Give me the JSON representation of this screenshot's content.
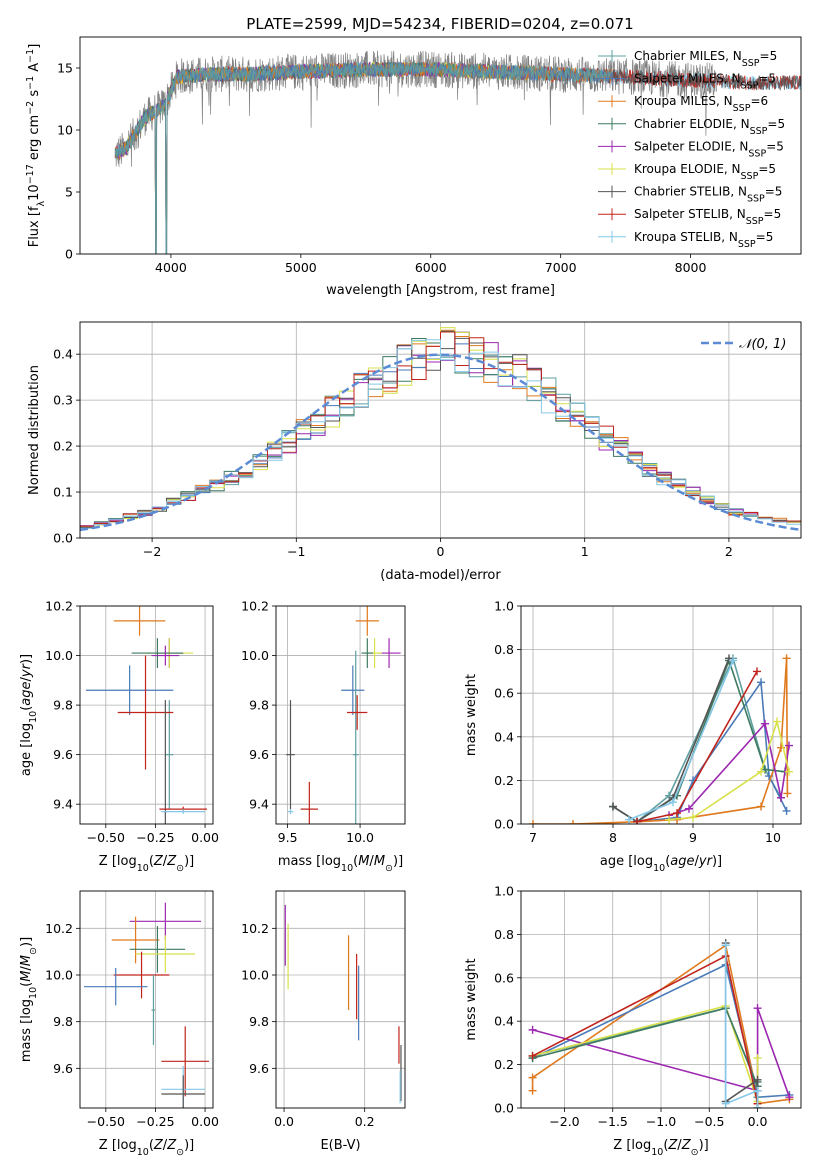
{
  "figure_title": "PLATE=2599, MJD=54234, FIBERID=0204, z=0.071",
  "colors": {
    "Chabrier MILES": "#5f9fa0",
    "Salpeter MILES": "#4a7ab8",
    "Kroupa MILES": "#e07a1f",
    "Chabrier ELODIE": "#3d7a60",
    "Salpeter ELODIE": "#9c27b0",
    "Kroupa ELODIE": "#d8e04a",
    "Chabrier STELIB": "#555555",
    "Salpeter STELIB": "#c0241c",
    "Kroupa STELIB": "#86c8e8",
    "data": "#808080",
    "normal": "#5b8bd4"
  },
  "chart_data": [
    {
      "type": "line",
      "id": "spectrum",
      "xlabel": "wavelength [Angstrom, rest frame]",
      "ylabel": "Flux [f_λ10^-17 erg cm^-2 s^-1 A^-1]",
      "xlim": [
        3300,
        8850
      ],
      "ylim": [
        0,
        17.5
      ],
      "xticks": [
        4000,
        5000,
        6000,
        7000,
        8000
      ],
      "yticks": [
        0,
        5,
        10,
        15
      ],
      "grid": false,
      "legend_position": "right",
      "legend": [
        {
          "label": "Chabrier MILES",
          "n": "5"
        },
        {
          "label": "Salpeter MILES",
          "n": "5"
        },
        {
          "label": "Kroupa MILES",
          "n": "6"
        },
        {
          "label": "Chabrier ELODIE",
          "n": "5"
        },
        {
          "label": "Salpeter ELODIE",
          "n": "5"
        },
        {
          "label": "Kroupa ELODIE",
          "n": "5"
        },
        {
          "label": "Chabrier STELIB",
          "n": "5"
        },
        {
          "label": "Salpeter STELIB",
          "n": "5"
        },
        {
          "label": "Kroupa STELIB",
          "n": "5"
        }
      ],
      "continuum": {
        "x": [
          3570,
          3650,
          3800,
          3950,
          4050,
          4300,
          4600,
          5000,
          5500,
          6000,
          6500,
          7000,
          7500,
          8000,
          8500
        ],
        "y": [
          8.0,
          8.5,
          11.0,
          12.0,
          14.3,
          14.5,
          14.5,
          14.7,
          14.9,
          14.9,
          14.7,
          14.5,
          14.3,
          14.0,
          13.8
        ]
      },
      "data_range": [
        3570,
        8200
      ],
      "miles_range": [
        3570,
        7400
      ],
      "elodie_range": [
        3570,
        6800
      ],
      "stelib_range": [
        3570,
        8850
      ]
    },
    {
      "type": "line",
      "id": "residual-histogram",
      "xlabel": "(data-model)/error",
      "ylabel": "Normed distribution",
      "xlim": [
        -2.5,
        2.5
      ],
      "ylim": [
        0,
        0.47
      ],
      "xticks": [
        -2,
        -1,
        0,
        1,
        2
      ],
      "yticks": [
        0.0,
        0.1,
        0.2,
        0.3,
        0.4
      ],
      "grid": true,
      "legend_label": "𝒩(0, 1)",
      "legend_position": "top-right",
      "gauss_sigma": 1.0,
      "bin_width": 0.1,
      "hist_shape": {
        "x": [
          -2.5,
          -2.0,
          -1.5,
          -1.0,
          -0.5,
          0.0,
          0.5,
          1.0,
          1.5,
          2.0,
          2.5
        ],
        "y": [
          0.02,
          0.06,
          0.12,
          0.22,
          0.33,
          0.42,
          0.37,
          0.25,
          0.14,
          0.06,
          0.03
        ]
      }
    },
    {
      "type": "scatter",
      "id": "age-vs-Z",
      "xlabel": "Z [log10(Z/Z⊙)]",
      "ylabel": "age [log10(age/yr)]",
      "xlim": [
        -0.63,
        0.04
      ],
      "ylim": [
        9.32,
        10.2
      ],
      "xticks": [
        -0.5,
        -0.25,
        0.0
      ],
      "xticklabels": [
        "−0.50",
        "−0.25",
        "0.00"
      ],
      "yticks": [
        9.4,
        9.6,
        9.8,
        10.0,
        10.2
      ],
      "grid": true,
      "points": [
        {
          "model": "Kroupa MILES",
          "x": -0.33,
          "xerr": 0.13,
          "y": 10.14,
          "yerr": 0.06
        },
        {
          "model": "Salpeter MILES",
          "x": -0.38,
          "xerr": 0.22,
          "y": 9.86,
          "yerr": 0.1
        },
        {
          "model": "Chabrier MILES",
          "x": -0.18,
          "xerr": 0.02,
          "y": 9.6,
          "yerr": 0.22
        },
        {
          "model": "Salpeter ELODIE",
          "x": -0.18,
          "xerr": 0.07,
          "y": 10.01,
          "yerr": 0.06
        },
        {
          "model": "Kroupa ELODIE",
          "x": -0.18,
          "xerr": 0.12,
          "y": 10.01,
          "yerr": 0.06
        },
        {
          "model": "Chabrier ELODIE",
          "x": -0.24,
          "xerr": 0.13,
          "y": 10.01,
          "yerr": 0.06
        },
        {
          "model": "Salpeter ELODIE",
          "x": -0.2,
          "xerr": 0.07,
          "y": 10.0,
          "yerr": 0.04
        },
        {
          "model": "Salpeter STELIB",
          "x": -0.3,
          "xerr": 0.14,
          "y": 9.77,
          "yerr": 0.23
        },
        {
          "model": "Chabrier STELIB",
          "x": -0.2,
          "xerr": 0.01,
          "y": 9.37,
          "yerr": 0.45
        },
        {
          "model": "Salpeter STELIB",
          "x": -0.11,
          "xerr": 0.12,
          "y": 9.38,
          "yerr": 0.01
        },
        {
          "model": "Kroupa STELIB",
          "x": -0.11,
          "xerr": 0.11,
          "y": 9.37,
          "yerr": 0.01
        }
      ]
    },
    {
      "type": "scatter",
      "id": "age-vs-mass",
      "xlabel": "mass [log10(M/M⊙)]",
      "ylabel": "",
      "xlim": [
        9.42,
        10.31
      ],
      "ylim": [
        9.32,
        10.2
      ],
      "xticks": [
        9.5,
        10.0
      ],
      "xticklabels": [
        "9.5",
        "10.0"
      ],
      "yticks": [
        9.4,
        9.6,
        9.8,
        10.0,
        10.2
      ],
      "grid": true,
      "points": [
        {
          "model": "Kroupa MILES",
          "x": 10.05,
          "xerr": 0.08,
          "y": 10.14,
          "yerr": 0.06
        },
        {
          "model": "Salpeter MILES",
          "x": 9.95,
          "xerr": 0.08,
          "y": 9.86,
          "yerr": 0.1
        },
        {
          "model": "Chabrier MILES",
          "x": 9.97,
          "xerr": 0.02,
          "y": 9.6,
          "yerr": 0.42
        },
        {
          "model": "Salpeter ELODIE",
          "x": 10.2,
          "xerr": 0.08,
          "y": 10.01,
          "yerr": 0.06
        },
        {
          "model": "Kroupa ELODIE",
          "x": 10.1,
          "xerr": 0.05,
          "y": 10.01,
          "yerr": 0.06
        },
        {
          "model": "Chabrier ELODIE",
          "x": 10.05,
          "xerr": 0.04,
          "y": 10.01,
          "yerr": 0.06
        },
        {
          "model": "Salpeter STELIB",
          "x": 9.98,
          "xerr": 0.07,
          "y": 9.77,
          "yerr": 0.07
        },
        {
          "model": "Chabrier STELIB",
          "x": 9.52,
          "xerr": 0.03,
          "y": 9.6,
          "yerr": 0.22
        },
        {
          "model": "Salpeter STELIB",
          "x": 9.65,
          "xerr": 0.06,
          "y": 9.38,
          "yerr": 0.11
        },
        {
          "model": "Kroupa STELIB",
          "x": 9.52,
          "xerr": 0.02,
          "y": 9.37,
          "yerr": 0.01
        }
      ]
    },
    {
      "type": "line",
      "id": "massweight-vs-age",
      "xlabel": "age [log10(age/yr)]",
      "ylabel": "mass weight",
      "xlim": [
        6.85,
        10.35
      ],
      "ylim": [
        0,
        1.0
      ],
      "xticks": [
        7,
        8,
        9,
        10
      ],
      "yticks": [
        0.0,
        0.2,
        0.4,
        0.6,
        0.8,
        1.0
      ],
      "grid": true,
      "series": [
        {
          "model": "Chabrier MILES",
          "x": [
            8.0,
            8.3,
            8.7,
            9.5,
            9.9,
            10.1
          ],
          "y": [
            0.08,
            0.01,
            0.13,
            0.76,
            0.25,
            0.12
          ]
        },
        {
          "model": "Salpeter MILES",
          "x": [
            8.3,
            8.8,
            9.0,
            9.85,
            9.95,
            10.17
          ],
          "y": [
            0.01,
            0.03,
            0.2,
            0.65,
            0.22,
            0.06
          ]
        },
        {
          "model": "Kroupa MILES",
          "x": [
            7.0,
            7.5,
            8.3,
            8.8,
            9.85,
            10.1,
            10.17,
            10.18
          ],
          "y": [
            0.0,
            0.0,
            0.01,
            0.02,
            0.08,
            0.35,
            0.76,
            0.14
          ]
        },
        {
          "model": "Chabrier ELODIE",
          "x": [
            8.0,
            8.3,
            8.8,
            9.45,
            9.9,
            10.15
          ],
          "y": [
            0.08,
            0.01,
            0.13,
            0.75,
            0.25,
            0.24
          ]
        },
        {
          "model": "Salpeter ELODIE",
          "x": [
            8.7,
            8.95,
            9.9,
            10.1,
            10.2
          ],
          "y": [
            0.04,
            0.07,
            0.46,
            0.12,
            0.36
          ]
        },
        {
          "model": "Kroupa ELODIE",
          "x": [
            8.7,
            9.0,
            9.85,
            10.05,
            10.2
          ],
          "y": [
            0.02,
            0.03,
            0.24,
            0.47,
            0.24
          ]
        },
        {
          "model": "Chabrier STELIB",
          "x": [
            8.0,
            8.3,
            8.75,
            9.45
          ],
          "y": [
            0.08,
            0.01,
            0.12,
            0.76
          ]
        },
        {
          "model": "Salpeter STELIB",
          "x": [
            8.3,
            8.8,
            9.8
          ],
          "y": [
            0.01,
            0.05,
            0.7
          ]
        },
        {
          "model": "Kroupa STELIB",
          "x": [
            8.2,
            8.75,
            9.5
          ],
          "y": [
            0.02,
            0.1,
            0.75
          ]
        }
      ]
    },
    {
      "type": "scatter",
      "id": "mass-vs-Z",
      "xlabel": "Z [log10(Z/Z⊙)]",
      "ylabel": "mass [log10(M/M⊙)]",
      "xlim": [
        -0.63,
        0.04
      ],
      "ylim": [
        9.43,
        10.36
      ],
      "xticks": [
        -0.5,
        -0.25,
        0.0
      ],
      "xticklabels": [
        "−0.50",
        "−0.25",
        "0.00"
      ],
      "yticks": [
        9.6,
        9.8,
        10.0,
        10.2
      ],
      "grid": true,
      "points": [
        {
          "model": "Salpeter ELODIE",
          "x": -0.2,
          "xerr": 0.18,
          "y": 10.23,
          "yerr": 0.08
        },
        {
          "model": "Kroupa MILES",
          "x": -0.35,
          "xerr": 0.12,
          "y": 10.15,
          "yerr": 0.1
        },
        {
          "model": "Chabrier ELODIE",
          "x": -0.24,
          "xerr": 0.14,
          "y": 10.11,
          "yerr": 0.1
        },
        {
          "model": "Kroupa ELODIE",
          "x": -0.2,
          "xerr": 0.15,
          "y": 10.09,
          "yerr": 0.08
        },
        {
          "model": "Salpeter STELIB",
          "x": -0.32,
          "xerr": 0.14,
          "y": 10.0,
          "yerr": 0.1
        },
        {
          "model": "Salpeter MILES",
          "x": -0.45,
          "xerr": 0.16,
          "y": 9.95,
          "yerr": 0.08
        },
        {
          "model": "Chabrier MILES",
          "x": -0.26,
          "xerr": 0.01,
          "y": 9.85,
          "yerr": 0.15
        },
        {
          "model": "Salpeter STELIB",
          "x": -0.1,
          "xerr": 0.12,
          "y": 9.63,
          "yerr": 0.15
        },
        {
          "model": "Kroupa STELIB",
          "x": -0.11,
          "xerr": 0.11,
          "y": 9.51,
          "yerr": 0.1
        },
        {
          "model": "Chabrier STELIB",
          "x": -0.11,
          "xerr": 0.11,
          "y": 9.49,
          "yerr": 0.08
        }
      ]
    },
    {
      "type": "scatter",
      "id": "mass-vs-ebv",
      "xlabel": "E(B-V)",
      "ylabel": "",
      "xlim": [
        -0.02,
        0.3
      ],
      "ylim": [
        9.43,
        10.36
      ],
      "xticks": [
        0.0,
        0.2
      ],
      "xticklabels": [
        "0.0",
        "0.2"
      ],
      "yticks": [
        9.6,
        9.8,
        10.0,
        10.2
      ],
      "grid": true,
      "points": [
        {
          "model": "Salpeter ELODIE",
          "x": 0.003,
          "xerr": 0,
          "y": 10.17,
          "yerr": 0.13
        },
        {
          "model": "Kroupa ELODIE",
          "x": 0.01,
          "xerr": 0,
          "y": 10.08,
          "yerr": 0.14
        },
        {
          "model": "Kroupa MILES",
          "x": 0.16,
          "xerr": 0,
          "y": 10.01,
          "yerr": 0.16
        },
        {
          "model": "Salpeter STELIB",
          "x": 0.18,
          "xerr": 0,
          "y": 9.95,
          "yerr": 0.14
        },
        {
          "model": "Salpeter MILES",
          "x": 0.185,
          "xerr": 0,
          "y": 9.88,
          "yerr": 0.16
        },
        {
          "model": "Salpeter STELIB",
          "x": 0.285,
          "xerr": 0,
          "y": 9.7,
          "yerr": 0.08
        },
        {
          "model": "Chabrier STELIB",
          "x": 0.29,
          "xerr": 0,
          "y": 9.58,
          "yerr": 0.12
        },
        {
          "model": "Kroupa STELIB",
          "x": 0.288,
          "xerr": 0,
          "y": 9.52,
          "yerr": 0.07
        }
      ]
    },
    {
      "type": "line",
      "id": "massweight-vs-Z",
      "xlabel": "Z [log10(Z/Z⊙)]",
      "ylabel": "mass weight",
      "xlim": [
        -2.45,
        0.45
      ],
      "ylim": [
        0,
        1.0
      ],
      "xticks": [
        -2.0,
        -1.5,
        -1.0,
        -0.5,
        0.0
      ],
      "xticklabels": [
        "−2.0",
        "−1.5",
        "−1.0",
        "−0.5",
        "0.0"
      ],
      "yticks": [
        0.0,
        0.2,
        0.4,
        0.6,
        0.8,
        1.0
      ],
      "grid": true,
      "series": [
        {
          "model": "Kroupa MILES",
          "x": [
            -2.33,
            -2.33,
            -0.33,
            0.0,
            0.0,
            0.33
          ],
          "y": [
            0.08,
            0.14,
            0.75,
            0.05,
            0.02,
            0.04
          ]
        },
        {
          "model": "Salpeter MILES",
          "x": [
            -2.33,
            -0.33,
            0.0,
            0.33
          ],
          "y": [
            0.23,
            0.66,
            0.05,
            0.06
          ]
        },
        {
          "model": "Chabrier MILES",
          "x": [
            -2.33,
            -0.33,
            0.0,
            0.0
          ],
          "y": [
            0.24,
            0.46,
            0.1,
            0.05
          ]
        },
        {
          "model": "Salpeter ELODIE",
          "x": [
            -2.33,
            0.0,
            0.0,
            0.33
          ],
          "y": [
            0.36,
            0.08,
            0.46,
            0.05
          ]
        },
        {
          "model": "Kroupa ELODIE",
          "x": [
            -2.33,
            -0.33,
            0.0,
            0.0
          ],
          "y": [
            0.24,
            0.47,
            0.03,
            0.23
          ]
        },
        {
          "model": "Chabrier ELODIE",
          "x": [
            -2.33,
            -0.33,
            0.0,
            0.0
          ],
          "y": [
            0.23,
            0.46,
            0.1,
            0.12
          ]
        },
        {
          "model": "Salpeter STELIB",
          "x": [
            -2.33,
            -0.33,
            0.0
          ],
          "y": [
            0.24,
            0.7,
            0.02
          ]
        },
        {
          "model": "Chabrier STELIB",
          "x": [
            -0.33,
            -0.33,
            0.0,
            0.0
          ],
          "y": [
            0.76,
            0.03,
            0.13,
            0.0
          ]
        },
        {
          "model": "Kroupa STELIB",
          "x": [
            -0.33,
            -0.33,
            0.0,
            0.0
          ],
          "y": [
            0.75,
            0.02,
            0.08,
            0.0
          ]
        }
      ]
    }
  ]
}
